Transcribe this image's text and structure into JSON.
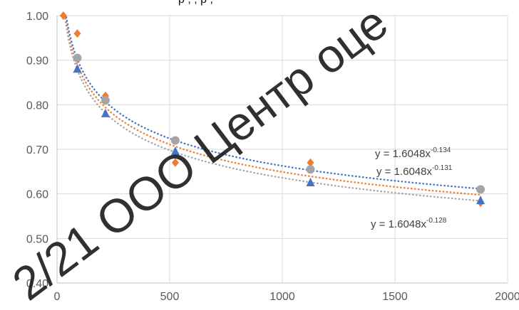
{
  "chart_data": {
    "type": "scatter",
    "title": "",
    "xlabel": "",
    "ylabel": "",
    "xlim": [
      0,
      2000
    ],
    "ylim": [
      0.4,
      1.0
    ],
    "x_ticks": [
      0,
      500,
      1000,
      1500,
      2000
    ],
    "y_ticks": [
      0.4,
      0.5,
      0.6,
      0.7,
      0.8,
      0.9,
      1.0
    ],
    "y_tick_labels": [
      "0.40",
      "0.50",
      "0.60",
      "0.70",
      "0.80",
      "0.90",
      "1.00"
    ],
    "x_tick_labels": [
      "0",
      "500",
      "1000",
      "1500",
      "2000"
    ],
    "grid": "vertical and horizontal",
    "series": [
      {
        "marker": "diamond",
        "color": "#ED7D31",
        "points": [
          [
            28,
            1.0
          ],
          [
            90,
            0.96
          ],
          [
            215,
            0.82
          ],
          [
            525,
            0.67
          ],
          [
            1125,
            0.67
          ],
          [
            1880,
            0.58
          ]
        ],
        "trend": {
          "a": 1.6048,
          "b": -0.131,
          "equation": "y = 1.6048x",
          "exponent": "-0.131"
        }
      },
      {
        "marker": "circle",
        "color": "#A5A5A5",
        "points": [
          [
            90,
            0.905
          ],
          [
            215,
            0.81
          ],
          [
            525,
            0.72
          ],
          [
            1125,
            0.655
          ],
          [
            1880,
            0.61
          ]
        ],
        "trend": {
          "a": 1.6048,
          "b": -0.134,
          "equation": "y = 1.6048x",
          "exponent": "-0.134"
        }
      },
      {
        "marker": "triangle",
        "color": "#4472C4",
        "points": [
          [
            90,
            0.88
          ],
          [
            215,
            0.78
          ],
          [
            525,
            0.695
          ],
          [
            1125,
            0.625
          ],
          [
            1880,
            0.585
          ]
        ],
        "trend": {
          "a": 1.6048,
          "b": -0.128,
          "equation": "y = 1.6048x",
          "exponent": "-0.128"
        }
      }
    ],
    "annotations": [
      {
        "series": 1,
        "text": "y = 1.6048x",
        "sup": "-0.134"
      },
      {
        "series": 0,
        "text": "y = 1.6048x",
        "sup": "-0.131"
      },
      {
        "series": 2,
        "text": "y = 1.6048x",
        "sup": "-0.128"
      }
    ],
    "header_fragment": "р          ,    , р   ,"
  },
  "watermark": "2/21 ООО Центр оце"
}
